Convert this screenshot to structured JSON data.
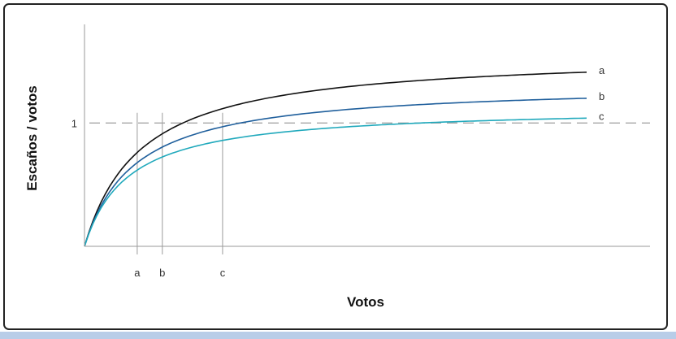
{
  "chart_data": {
    "type": "line",
    "title": "",
    "xlabel": "Votos",
    "ylabel": "Escaños / votos",
    "y_reference": {
      "value": 1,
      "label": "1",
      "style": "dashed"
    },
    "x_markers": [
      "a",
      "b",
      "c"
    ],
    "xlim": [
      0,
      100
    ],
    "ylim": [
      0,
      1.8
    ],
    "grid": false,
    "series": [
      {
        "name": "a",
        "color": "#111111",
        "k": 18,
        "x": [
          0,
          5,
          10,
          15,
          20,
          30,
          40,
          60,
          80,
          100
        ],
        "values": [
          0,
          1.03,
          1.34,
          1.44,
          1.5,
          1.54,
          1.56,
          1.57,
          1.57,
          1.57
        ]
      },
      {
        "name": "b",
        "color": "#1f5f9c",
        "k": 16,
        "x": [
          0,
          5,
          10,
          15,
          20,
          30,
          40,
          60,
          80,
          100
        ],
        "values": [
          0,
          0.86,
          1.06,
          1.15,
          1.2,
          1.26,
          1.29,
          1.31,
          1.32,
          1.32
        ]
      },
      {
        "name": "c",
        "color": "#20a9bc",
        "k": 14,
        "x": [
          0,
          5,
          10,
          15,
          20,
          30,
          40,
          60,
          80,
          100
        ],
        "values": [
          0,
          0.72,
          0.87,
          0.95,
          1.0,
          1.06,
          1.09,
          1.12,
          1.13,
          1.13
        ]
      }
    ],
    "marker_points": [
      {
        "label": "a",
        "x": 10.5,
        "y": 1.03
      },
      {
        "label": "b",
        "x": 15.5,
        "y": 1.03
      },
      {
        "label": "c",
        "x": 27.5,
        "y": 1.03
      }
    ]
  }
}
